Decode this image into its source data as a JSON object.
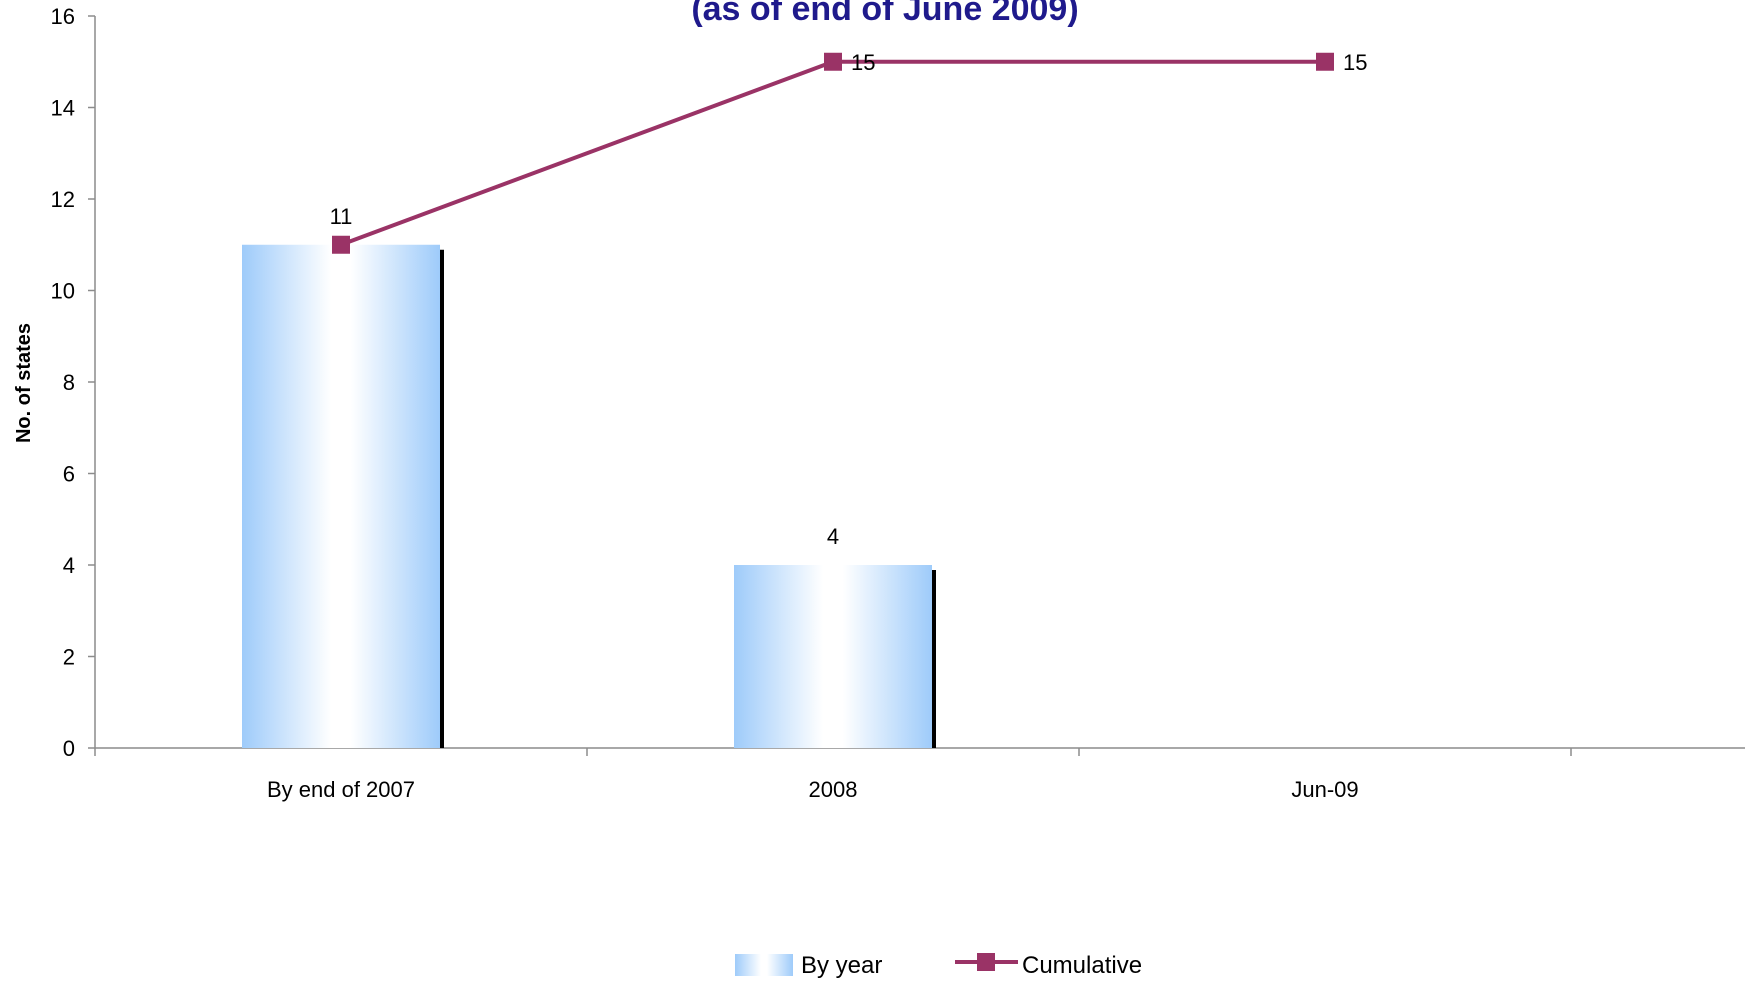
{
  "colors": {
    "title": "#1f1a8c",
    "bar_edge": "#9ecbfa",
    "bar_center": "#ffffff",
    "bar_shadow": "#000000",
    "line": "#9a3366",
    "axis": "#8c8c8c"
  },
  "chart_data": {
    "type": "bar",
    "title": "(as of end of June 2009)",
    "xlabel": "",
    "ylabel": "No. of states",
    "ylim": [
      0,
      16
    ],
    "yticks": [
      0,
      2,
      4,
      6,
      8,
      10,
      12,
      14,
      16
    ],
    "categories": [
      "By end of 2007",
      "2008",
      "Jun-09"
    ],
    "series": [
      {
        "name": "By year",
        "type": "bar",
        "values": [
          11,
          4,
          null
        ],
        "labels": [
          "11",
          "4",
          ""
        ]
      },
      {
        "name": "Cumulative",
        "type": "line",
        "marker": "square",
        "values": [
          11,
          15,
          15
        ],
        "labels": [
          "",
          "15",
          "15"
        ]
      }
    ],
    "legend": "bottom",
    "grid": false
  }
}
